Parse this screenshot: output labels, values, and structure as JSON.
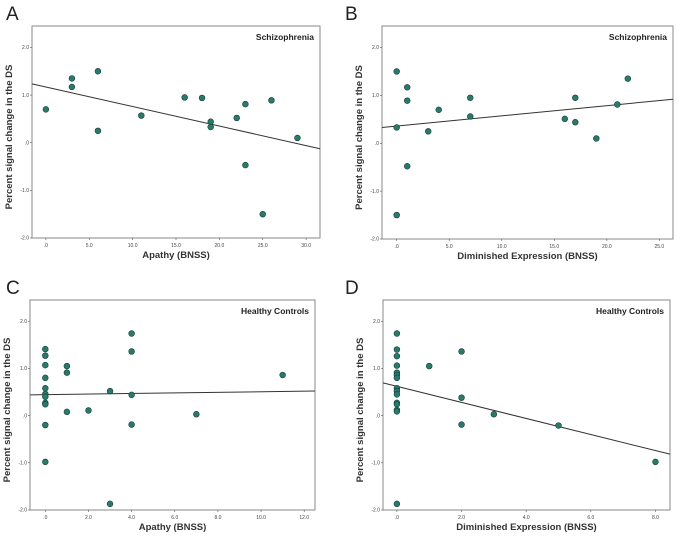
{
  "colors": {
    "point_fill": "#2a7a6c",
    "point_stroke": "#163f38",
    "frame": "#888888",
    "line": "#333333"
  },
  "chart_data": [
    {
      "type": "scatter",
      "panel": "A",
      "title": "Schizophrenia",
      "xlabel": "Apathy (BNSS)",
      "ylabel": "Percent signal change in the DS",
      "xlim": [
        -1.6,
        31.6
      ],
      "ylim": [
        -2.0,
        2.45
      ],
      "xticks": [
        0,
        5,
        10,
        15,
        20,
        25,
        30
      ],
      "xtick_labels": [
        ".0",
        "5.0",
        "10.0",
        "15.0",
        "20.0",
        "25.0",
        "30.0"
      ],
      "yticks": [
        2,
        1,
        0,
        -1,
        -2
      ],
      "ytick_labels": [
        "2.0",
        "1.0",
        ".0",
        "-1.0",
        "-2.0"
      ],
      "x": [
        0,
        3,
        3,
        6,
        6,
        11,
        16,
        18,
        19,
        19,
        22,
        23,
        23,
        25,
        26,
        29
      ],
      "y": [
        0.7,
        1.35,
        1.17,
        1.5,
        0.25,
        0.57,
        0.95,
        0.94,
        0.44,
        0.33,
        0.52,
        0.81,
        -0.47,
        -1.5,
        0.89,
        0.1
      ],
      "fit": {
        "intercept": 1.17,
        "slope": -0.041
      }
    },
    {
      "type": "scatter",
      "panel": "B",
      "title": "Schizophrenia",
      "xlabel": "Diminished Expression (BNSS)",
      "ylabel": "Percent signal change in the DS",
      "xlim": [
        -1.4,
        26.3
      ],
      "ylim": [
        -2.0,
        2.45
      ],
      "xticks": [
        0,
        5,
        10,
        15,
        20,
        25
      ],
      "xtick_labels": [
        ".0",
        "5.0",
        "10.0",
        "15.0",
        "20.0",
        "25.0"
      ],
      "yticks": [
        2,
        1,
        0,
        -1,
        -2
      ],
      "ytick_labels": [
        "2.0",
        "1.0",
        ".0",
        "-1.0",
        "-2.0"
      ],
      "x": [
        0,
        1,
        1,
        0,
        3,
        4,
        7,
        7,
        1,
        0,
        16,
        17,
        17,
        19,
        21,
        22
      ],
      "y": [
        1.5,
        1.17,
        0.89,
        0.33,
        0.25,
        0.7,
        0.95,
        0.56,
        -0.48,
        -1.5,
        0.51,
        0.95,
        0.44,
        0.1,
        0.81,
        1.35
      ],
      "fit": {
        "intercept": 0.36,
        "slope": 0.0213
      }
    },
    {
      "type": "scatter",
      "panel": "C",
      "title": "Healthy Controls",
      "xlabel": "Apathy (BNSS)",
      "ylabel": "Percent signal change in the DS",
      "xlim": [
        -0.71,
        12.5
      ],
      "ylim": [
        -2.0,
        2.45
      ],
      "xticks": [
        0,
        2,
        4,
        6,
        8,
        10,
        12
      ],
      "xtick_labels": [
        ".0",
        "2.0",
        "4.0",
        "6.0",
        "8.0",
        "10.0",
        "12.0"
      ],
      "yticks": [
        2,
        1,
        0,
        -1,
        -2
      ],
      "ytick_labels": [
        "2.0",
        "1.0",
        ".0",
        "-1.0",
        "-2.0"
      ],
      "x": [
        0,
        0,
        0,
        0,
        0,
        0,
        0,
        0,
        0,
        0,
        0,
        1,
        1,
        1,
        2,
        3,
        3,
        4,
        4,
        4,
        4,
        7,
        11
      ],
      "y": [
        1.41,
        1.27,
        1.07,
        0.8,
        0.58,
        0.46,
        0.4,
        0.27,
        0.24,
        -0.2,
        -0.98,
        1.05,
        0.91,
        0.08,
        0.11,
        0.52,
        -1.87,
        1.74,
        1.36,
        0.44,
        -0.19,
        0.03,
        0.86
      ],
      "fit": {
        "intercept": 0.445,
        "slope": 0.0061
      }
    },
    {
      "type": "scatter",
      "panel": "D",
      "title": "Healthy Controls",
      "xlabel": "Diminished Expression (BNSS)",
      "ylabel": "Percent signal change in the DS",
      "xlim": [
        -0.43,
        8.45
      ],
      "ylim": [
        -2.0,
        2.45
      ],
      "xticks": [
        0,
        2,
        4,
        6,
        8
      ],
      "xtick_labels": [
        ".0",
        "2.0",
        "4.0",
        "6.0",
        "8.0"
      ],
      "yticks": [
        2,
        1,
        0,
        -1,
        -2
      ],
      "ytick_labels": [
        "2.0",
        "1.0",
        ".0",
        "-1.0",
        "-2.0"
      ],
      "x": [
        0,
        0,
        0,
        0,
        0,
        0,
        0,
        0,
        0,
        0,
        0,
        0,
        0,
        0,
        0,
        1,
        2,
        2,
        2,
        3,
        5,
        8
      ],
      "y": [
        1.74,
        1.4,
        1.26,
        1.06,
        0.91,
        0.86,
        0.8,
        0.58,
        0.52,
        0.45,
        0.27,
        0.24,
        0.12,
        0.09,
        -1.87,
        1.05,
        1.36,
        0.38,
        -0.19,
        0.03,
        -0.21,
        -0.98
      ],
      "fit": {
        "intercept": 0.62,
        "slope": -0.17
      }
    }
  ]
}
